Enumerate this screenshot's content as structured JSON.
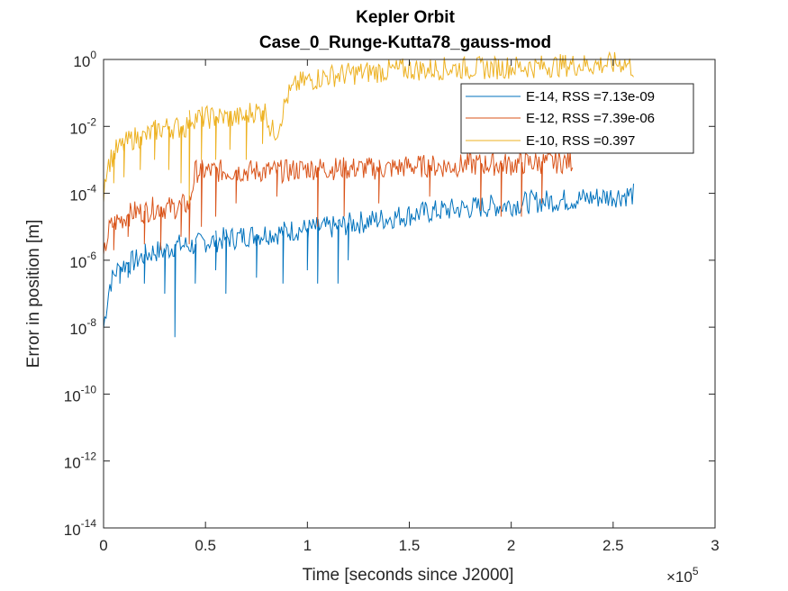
{
  "chart_data": {
    "type": "line",
    "title": "Kepler Orbit",
    "subtitle": "Case_0_Runge-Kutta78_gauss-mod",
    "xlabel": "Time [seconds since J2000]",
    "ylabel": "Error in position [m]",
    "x_multiplier": "×10",
    "x_multiplier_exponent": "5",
    "xlim": [
      0,
      3
    ],
    "ylim": [
      1e-14,
      1
    ],
    "yscale": "log",
    "grid": false,
    "legend_position": "top-right",
    "x_ticks": [
      {
        "value": 0,
        "label": "0"
      },
      {
        "value": 0.5,
        "label": "0.5"
      },
      {
        "value": 1,
        "label": "1"
      },
      {
        "value": 1.5,
        "label": "1.5"
      },
      {
        "value": 2,
        "label": "2"
      },
      {
        "value": 2.5,
        "label": "2.5"
      },
      {
        "value": 3,
        "label": "3"
      }
    ],
    "y_ticks": [
      {
        "exp": 0,
        "base": "10",
        "sup": "0"
      },
      {
        "exp": -2,
        "base": "10",
        "sup": "-2"
      },
      {
        "exp": -4,
        "base": "10",
        "sup": "-4"
      },
      {
        "exp": -6,
        "base": "10",
        "sup": "-6"
      },
      {
        "exp": -8,
        "base": "10",
        "sup": "-8"
      },
      {
        "exp": -10,
        "base": "10",
        "sup": "-10"
      },
      {
        "exp": -12,
        "base": "10",
        "sup": "-12"
      },
      {
        "exp": -14,
        "base": "10",
        "sup": "-14"
      }
    ],
    "series": [
      {
        "name": "E-14, RSS =7.13e-09",
        "color": "#0072BD",
        "x": [
          0,
          0.01,
          0.03,
          0.06,
          0.1,
          0.15,
          0.2,
          0.25,
          0.3,
          0.35,
          0.4,
          0.45,
          0.5,
          0.55,
          0.6,
          0.65,
          0.7,
          0.75,
          0.8,
          0.85,
          0.9,
          0.95,
          1.0,
          1.05,
          1.1,
          1.15,
          1.2,
          1.3,
          1.4,
          1.5,
          1.6,
          1.7,
          1.8,
          1.9,
          2.0,
          2.1,
          2.2,
          2.3,
          2.4,
          2.5,
          2.6
        ],
        "y": [
          1e-08,
          3e-08,
          2e-07,
          5e-07,
          8e-07,
          1e-06,
          1.5e-06,
          2e-06,
          2e-06,
          3e-06,
          3e-06,
          3e-06,
          4e-06,
          4e-06,
          5e-06,
          5e-06,
          6e-06,
          6e-06,
          7e-06,
          7e-06,
          8e-06,
          9e-06,
          9e-06,
          1e-05,
          1e-05,
          1.1e-05,
          1.3e-05,
          1.6e-05,
          2e-05,
          2.5e-05,
          3e-05,
          3.5e-05,
          4e-05,
          4.5e-05,
          5e-05,
          6e-05,
          6.5e-05,
          7e-05,
          8e-05,
          9e-05,
          0.0001
        ],
        "dips": [
          {
            "x": 0.08,
            "y": 2e-07
          },
          {
            "x": 0.12,
            "y": 3e-07
          },
          {
            "x": 0.2,
            "y": 2e-07
          },
          {
            "x": 0.3,
            "y": 1e-07
          },
          {
            "x": 0.35,
            "y": 5e-09
          },
          {
            "x": 0.45,
            "y": 2e-07
          },
          {
            "x": 0.55,
            "y": 5e-07
          },
          {
            "x": 0.6,
            "y": 1e-07
          },
          {
            "x": 0.75,
            "y": 3e-07
          },
          {
            "x": 0.88,
            "y": 2e-07
          },
          {
            "x": 1.0,
            "y": 5e-07
          },
          {
            "x": 1.05,
            "y": 2e-07
          },
          {
            "x": 1.15,
            "y": 2e-07
          },
          {
            "x": 1.2,
            "y": 1e-06
          }
        ]
      },
      {
        "name": "E-12, RSS =7.39e-06",
        "color": "#D95319",
        "x": [
          0,
          0.01,
          0.03,
          0.06,
          0.1,
          0.15,
          0.2,
          0.25,
          0.3,
          0.35,
          0.4,
          0.42,
          0.45,
          0.5,
          0.6,
          0.7,
          0.8,
          0.9,
          1.0,
          1.1,
          1.2,
          1.3,
          1.4,
          1.5,
          1.6,
          1.7,
          1.8,
          1.9,
          2.0,
          2.1,
          2.2,
          2.3
        ],
        "y": [
          1e-06,
          3e-06,
          1e-05,
          1.5e-05,
          2e-05,
          3e-05,
          3e-05,
          4e-05,
          4e-05,
          4e-05,
          5e-05,
          5e-05,
          0.0005,
          0.0005,
          0.0005,
          0.0005,
          0.0005,
          0.0005,
          0.0006,
          0.0006,
          0.0006,
          0.0006,
          0.0006,
          0.0007,
          0.0007,
          0.0007,
          0.0008,
          0.0008,
          0.0008,
          0.0009,
          0.0009,
          0.001
        ],
        "dips": [
          {
            "x": 0.05,
            "y": 2e-06
          },
          {
            "x": 0.12,
            "y": 5e-06
          },
          {
            "x": 0.2,
            "y": 3e-06
          },
          {
            "x": 0.28,
            "y": 2e-06
          },
          {
            "x": 0.38,
            "y": 5e-06
          },
          {
            "x": 0.42,
            "y": 3e-06
          },
          {
            "x": 0.48,
            "y": 1e-05
          },
          {
            "x": 0.55,
            "y": 2e-05
          },
          {
            "x": 0.65,
            "y": 5e-05
          },
          {
            "x": 0.85,
            "y": 8e-05
          },
          {
            "x": 1.05,
            "y": 1e-05
          },
          {
            "x": 1.18,
            "y": 2e-05
          },
          {
            "x": 1.35,
            "y": 5e-05
          },
          {
            "x": 1.6,
            "y": 8e-05
          },
          {
            "x": 1.85,
            "y": 3e-05
          },
          {
            "x": 1.95,
            "y": 2e-05
          },
          {
            "x": 2.05,
            "y": 2e-05
          },
          {
            "x": 2.15,
            "y": 5e-05
          }
        ]
      },
      {
        "name": "E-10, RSS =0.397",
        "color": "#EDB120",
        "x": [
          0,
          0.01,
          0.03,
          0.06,
          0.1,
          0.15,
          0.2,
          0.25,
          0.3,
          0.35,
          0.4,
          0.43,
          0.45,
          0.5,
          0.6,
          0.7,
          0.72,
          0.8,
          0.82,
          0.85,
          0.9,
          0.95,
          1.0,
          1.1,
          1.2,
          1.3,
          1.4,
          1.5,
          1.6,
          1.7,
          1.8,
          1.9,
          2.0,
          2.1,
          2.2,
          2.3,
          2.4,
          2.5,
          2.55,
          2.6
        ],
        "y": [
          0.0001,
          0.0005,
          0.001,
          0.002,
          0.003,
          0.005,
          0.005,
          0.008,
          0.01,
          0.01,
          0.01,
          0.02,
          0.02,
          0.02,
          0.02,
          0.02,
          0.03,
          0.03,
          0.008,
          0.008,
          0.08,
          0.2,
          0.25,
          0.35,
          0.4,
          0.45,
          0.5,
          0.55,
          0.55,
          0.6,
          0.6,
          0.6,
          0.65,
          0.65,
          0.7,
          0.75,
          0.75,
          0.8,
          0.9,
          0.6
        ],
        "dips": [
          {
            "x": 0.05,
            "y": 0.0002
          },
          {
            "x": 0.1,
            "y": 0.0003
          },
          {
            "x": 0.18,
            "y": 0.0005
          },
          {
            "x": 0.25,
            "y": 0.001
          },
          {
            "x": 0.32,
            "y": 0.0005
          },
          {
            "x": 0.38,
            "y": 0.0002
          },
          {
            "x": 0.42,
            "y": 5e-05
          },
          {
            "x": 0.48,
            "y": 0.001
          },
          {
            "x": 0.55,
            "y": 0.001
          },
          {
            "x": 0.62,
            "y": 0.002
          },
          {
            "x": 0.7,
            "y": 0.001
          },
          {
            "x": 0.78,
            "y": 0.003
          }
        ]
      }
    ]
  }
}
